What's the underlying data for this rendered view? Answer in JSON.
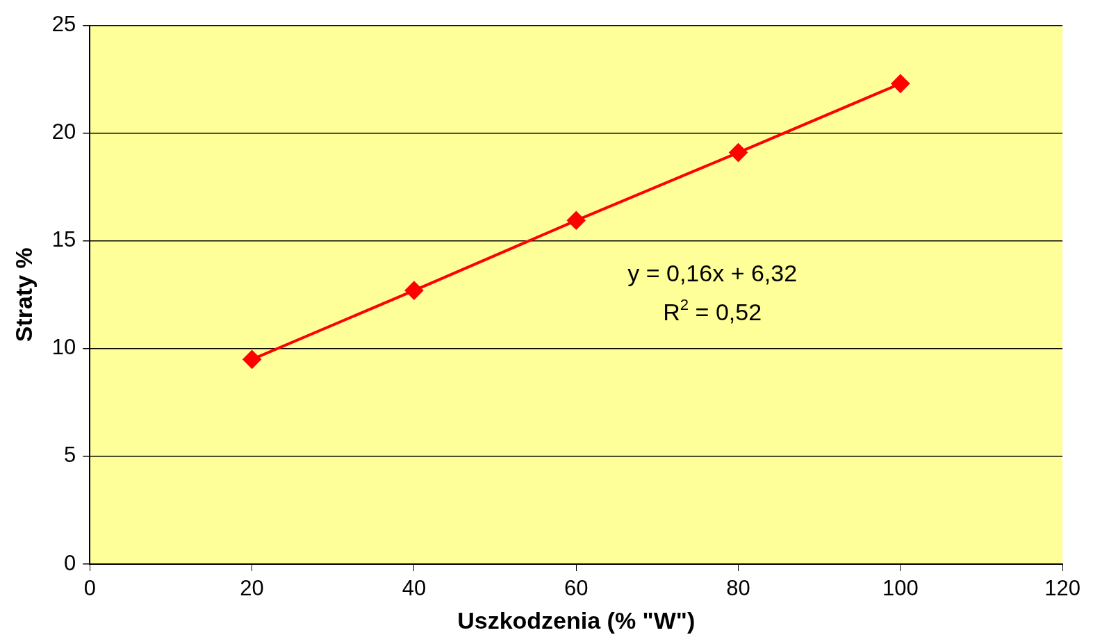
{
  "chart_data": {
    "type": "line",
    "xlabel": "Uszkodzenia (% \"W\")",
    "ylabel": "Straty %",
    "x": [
      20,
      40,
      60,
      80,
      100
    ],
    "series": [
      {
        "color": "#ff0000",
        "values": [
          9.5,
          12.7,
          15.95,
          19.1,
          22.3
        ]
      }
    ],
    "xlim": [
      0,
      120
    ],
    "xticks": [
      0,
      20,
      40,
      60,
      80,
      100,
      120
    ],
    "ylim": [
      0,
      25
    ],
    "yticks": [
      0,
      5,
      10,
      15,
      20,
      25
    ],
    "grid": "y",
    "marker": "diamond",
    "line_style": "solid",
    "legend": false,
    "annotations": [
      "y = 0,16x + 6,32",
      "R$^{2}$ = 0,52"
    ]
  }
}
